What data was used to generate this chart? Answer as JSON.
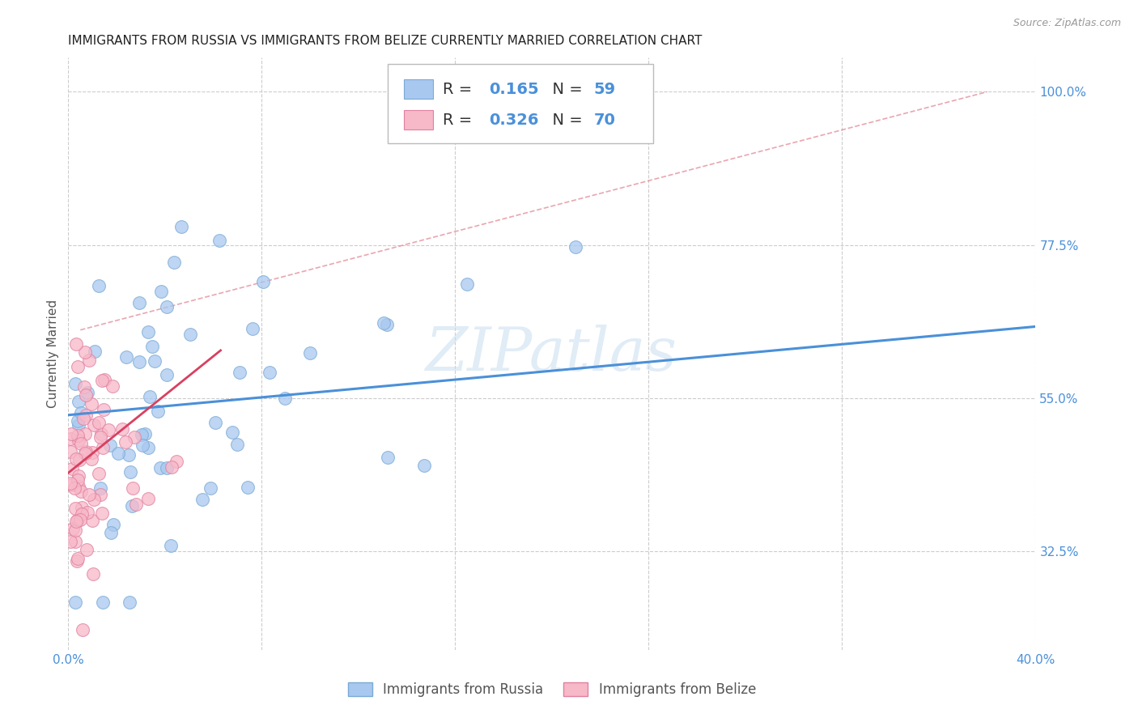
{
  "title": "IMMIGRANTS FROM RUSSIA VS IMMIGRANTS FROM BELIZE CURRENTLY MARRIED CORRELATION CHART",
  "source": "Source: ZipAtlas.com",
  "ylabel": "Currently Married",
  "xlim": [
    0.0,
    0.4
  ],
  "ylim": [
    0.18,
    1.05
  ],
  "xticks": [
    0.0,
    0.08,
    0.16,
    0.24,
    0.32,
    0.4
  ],
  "xticklabels": [
    "0.0%",
    "",
    "",
    "",
    "",
    "40.0%"
  ],
  "yticks_right": [
    1.0,
    0.775,
    0.55,
    0.325
  ],
  "ytick_right_labels": [
    "100.0%",
    "77.5%",
    "55.0%",
    "32.5%"
  ],
  "grid_color": "#cccccc",
  "background_color": "#ffffff",
  "watermark": "ZIPatlas",
  "russia_color": "#a8c8f0",
  "russia_edge": "#7aaad4",
  "belize_color": "#f7b8c8",
  "belize_edge": "#e080a0",
  "trendline_russia_color": "#4a90d9",
  "trendline_belize_color": "#d94060",
  "refline_color": "#e08090",
  "russia_R": 0.165,
  "russia_N": 59,
  "belize_R": 0.326,
  "belize_N": 70,
  "title_fontsize": 11,
  "axis_label_fontsize": 11,
  "tick_fontsize": 11,
  "legend_fontsize": 14
}
